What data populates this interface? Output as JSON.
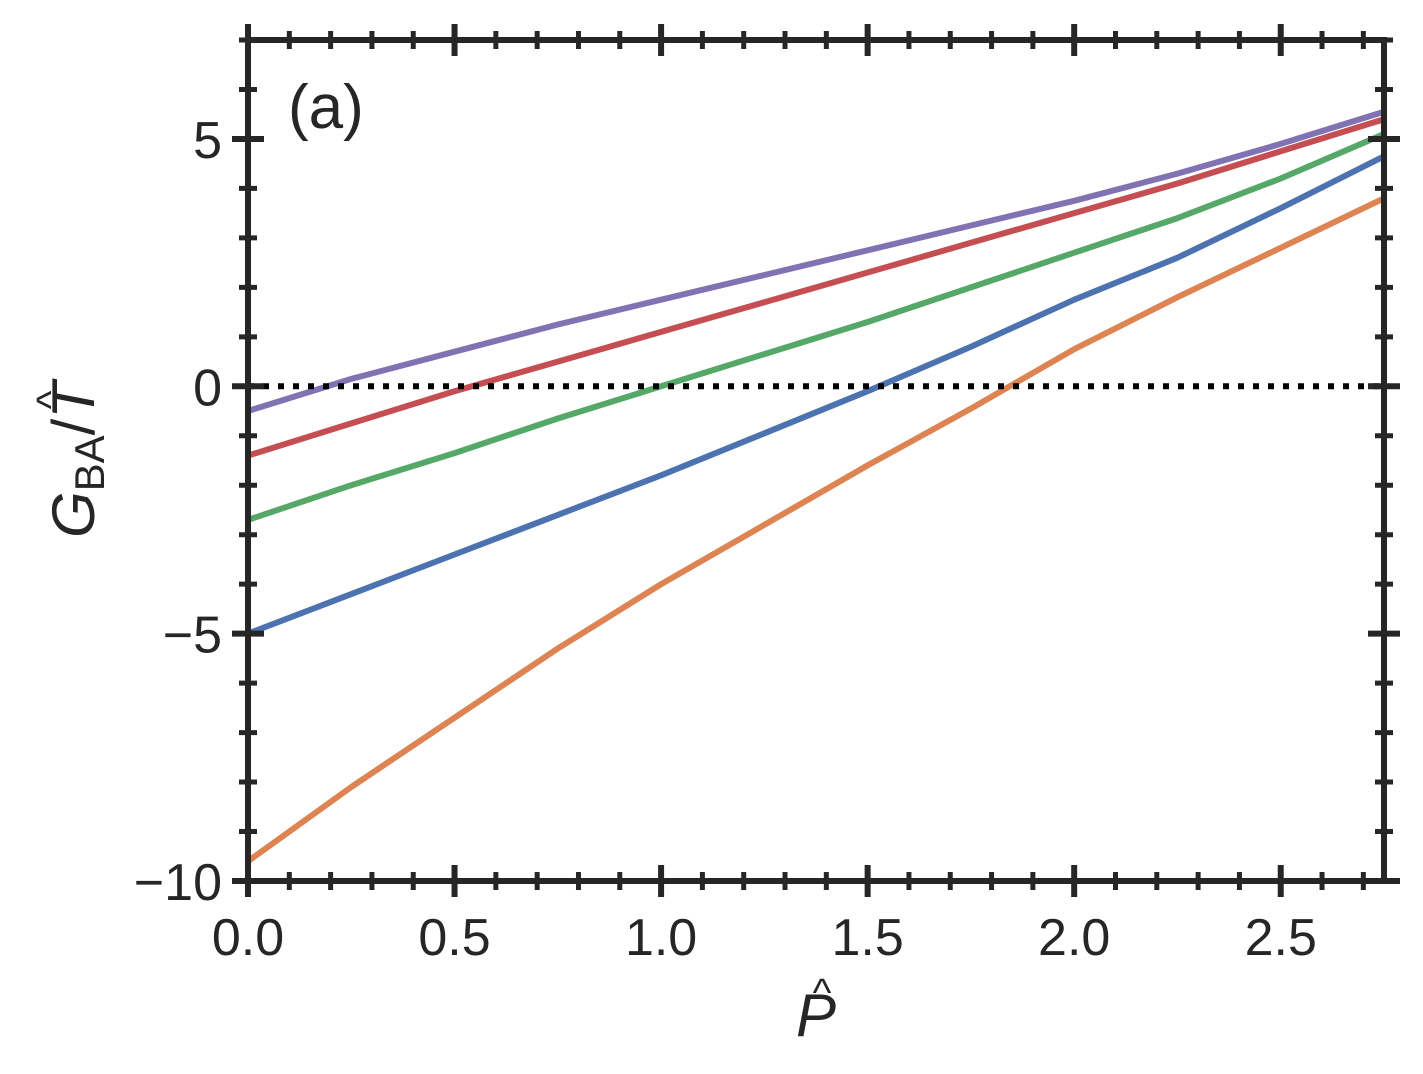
{
  "chart_data": {
    "type": "line",
    "panel_label": "(a)",
    "xlabel": "P",
    "ylabel_main": "G",
    "ylabel_sub": "BA",
    "ylabel_den": "T",
    "ylabel_sep": "/",
    "hat": "^",
    "xlim": [
      0.0,
      2.75
    ],
    "ylim": [
      -10,
      7
    ],
    "xticks": [
      0.0,
      0.5,
      1.0,
      1.5,
      2.0,
      2.5
    ],
    "xtick_labels": [
      "0.0",
      "0.5",
      "1.0",
      "1.5",
      "2.0",
      "2.5"
    ],
    "yticks": [
      -10,
      -5,
      0,
      5
    ],
    "ytick_labels": [
      "−10",
      "−5",
      "0",
      "5"
    ],
    "reference_line": {
      "y": 0,
      "style": "dotted",
      "color": "#000000"
    },
    "grid": false,
    "x": [
      0.0,
      0.25,
      0.5,
      0.75,
      1.0,
      1.25,
      1.5,
      1.75,
      2.0,
      2.25,
      2.5,
      2.75
    ],
    "series": [
      {
        "color": "#dd8452",
        "values": [
          -9.6,
          -8.1,
          -6.7,
          -5.3,
          -4.0,
          -2.8,
          -1.6,
          -0.45,
          0.75,
          1.8,
          2.8,
          3.8
        ]
      },
      {
        "color": "#4c72b0",
        "values": [
          -5.0,
          -4.2,
          -3.4,
          -2.6,
          -1.8,
          -0.95,
          -0.1,
          0.8,
          1.75,
          2.6,
          3.6,
          4.65
        ]
      },
      {
        "color": "#55a868",
        "values": [
          -2.7,
          -2.0,
          -1.35,
          -0.65,
          0.0,
          0.65,
          1.3,
          2.0,
          2.7,
          3.4,
          4.2,
          5.1
        ]
      },
      {
        "color": "#c44e52",
        "values": [
          -1.4,
          -0.75,
          -0.1,
          0.5,
          1.1,
          1.7,
          2.3,
          2.9,
          3.5,
          4.1,
          4.75,
          5.4
        ]
      },
      {
        "color": "#8172b3",
        "values": [
          -0.5,
          0.15,
          0.7,
          1.25,
          1.75,
          2.25,
          2.75,
          3.25,
          3.75,
          4.3,
          4.9,
          5.55
        ]
      }
    ]
  }
}
